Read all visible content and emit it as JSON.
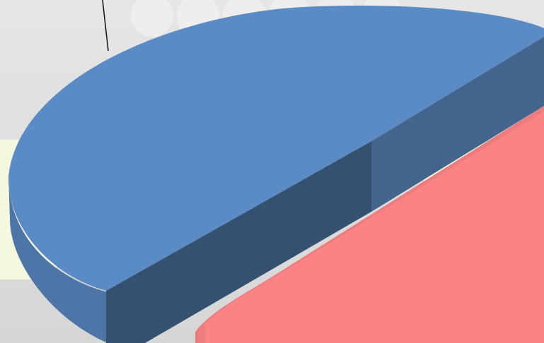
{
  "chart_data": {
    "type": "pie",
    "colors": [
      "#5b8bc4",
      "#f98385"
    ]
  }
}
